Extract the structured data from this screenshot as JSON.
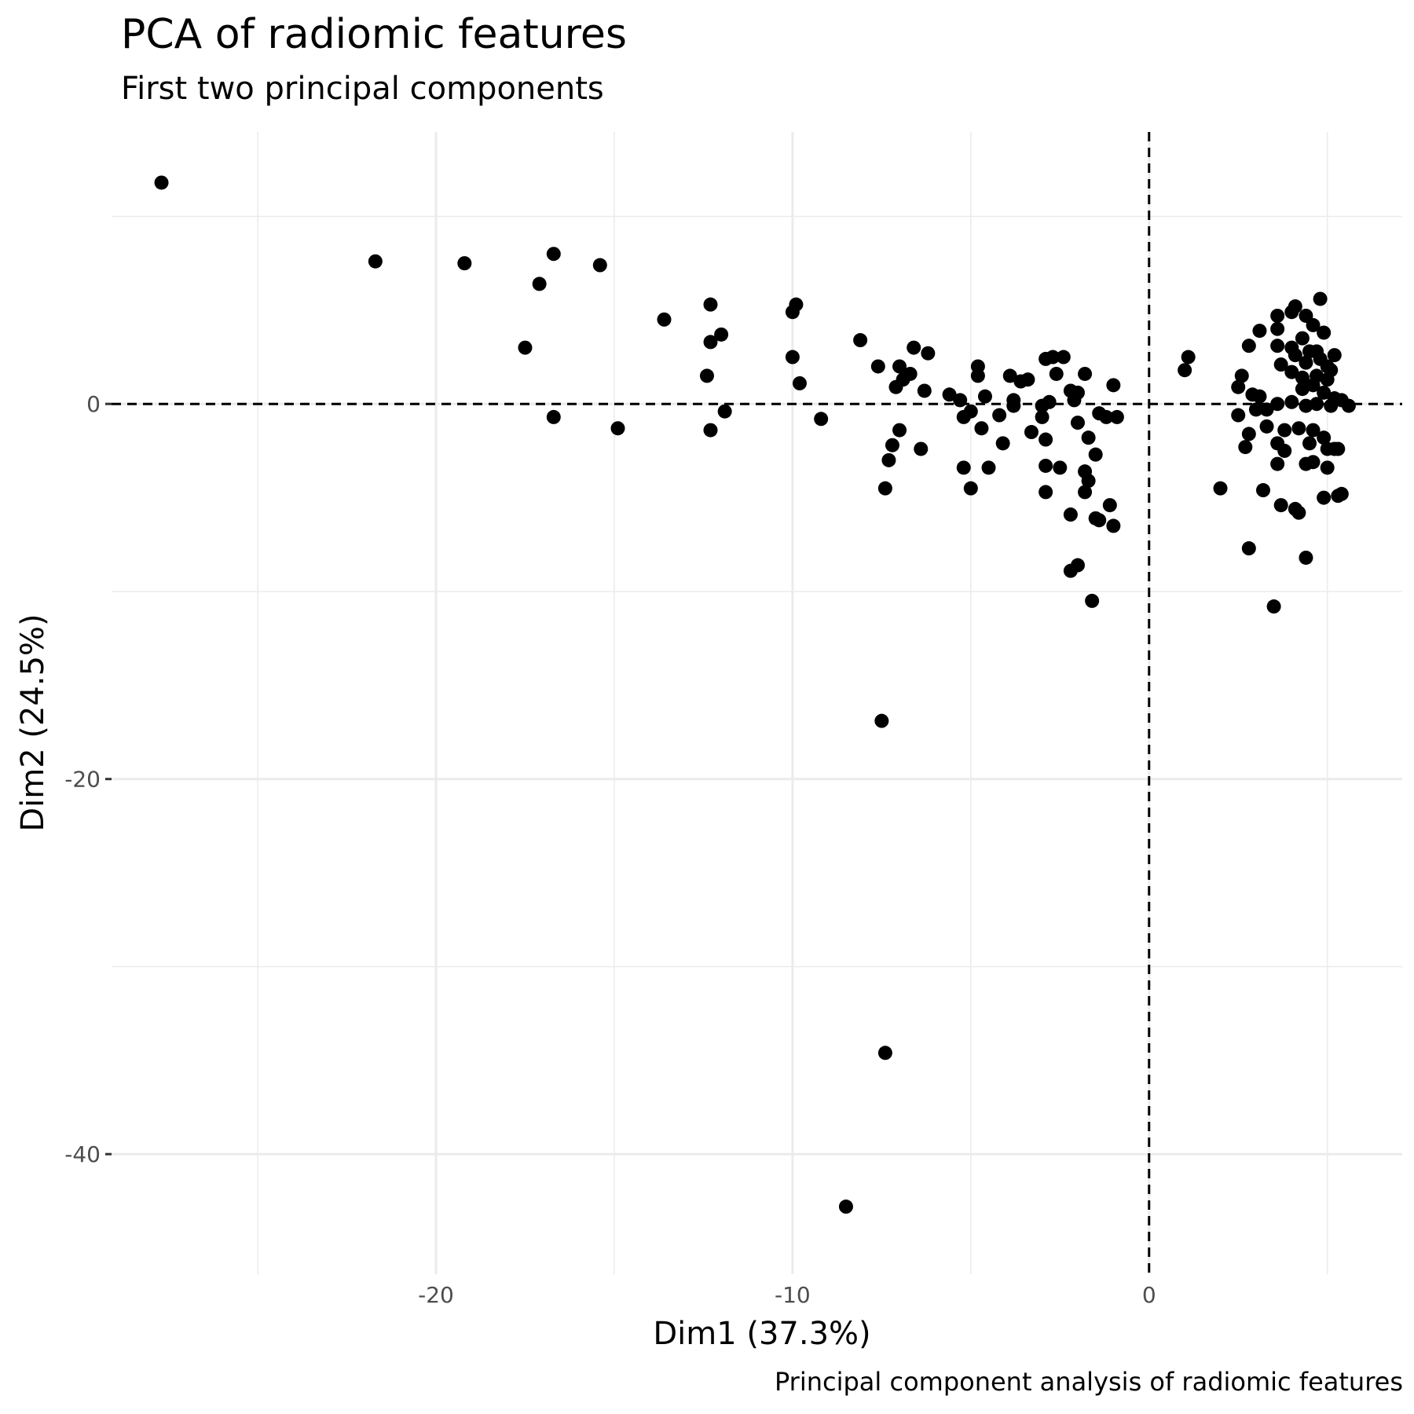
{
  "title": "PCA of radiomic features",
  "subtitle": "First two principal components",
  "caption": "Principal component analysis of radiomic features",
  "chart_data": {
    "type": "scatter",
    "title": "PCA of radiomic features",
    "subtitle": "First two principal components",
    "xlabel": "Dim1 (37.3%)",
    "ylabel": "Dim2 (24.5%)",
    "xlim": [
      -29.1,
      7.1
    ],
    "ylim": [
      -46.4,
      14.5
    ],
    "xticks": [
      -20,
      -10,
      0
    ],
    "yticks": [
      0,
      -20,
      -40
    ],
    "grid": true,
    "reference_lines": {
      "x": 0,
      "y": 0,
      "style": "dashed"
    },
    "point_color": "#000000",
    "points": [
      {
        "x": -27.7,
        "y": 11.8
      },
      {
        "x": -21.7,
        "y": 7.6
      },
      {
        "x": -19.2,
        "y": 7.5
      },
      {
        "x": -16.7,
        "y": 8.0
      },
      {
        "x": -15.4,
        "y": 7.4
      },
      {
        "x": -17.1,
        "y": 6.4
      },
      {
        "x": -17.5,
        "y": 3.0
      },
      {
        "x": -16.7,
        "y": -0.7
      },
      {
        "x": -14.9,
        "y": -1.3
      },
      {
        "x": -13.6,
        "y": 4.5
      },
      {
        "x": -12.3,
        "y": 5.3
      },
      {
        "x": -12.3,
        "y": 3.3
      },
      {
        "x": -12.0,
        "y": 3.7
      },
      {
        "x": -12.4,
        "y": 1.5
      },
      {
        "x": -12.3,
        "y": -1.4
      },
      {
        "x": -11.9,
        "y": -0.4
      },
      {
        "x": -9.9,
        "y": 5.3
      },
      {
        "x": -10.0,
        "y": 4.9
      },
      {
        "x": -10.0,
        "y": 2.5
      },
      {
        "x": -9.8,
        "y": 1.1
      },
      {
        "x": -9.2,
        "y": -0.8
      },
      {
        "x": -8.1,
        "y": 3.4
      },
      {
        "x": -7.6,
        "y": 2.0
      },
      {
        "x": -7.0,
        "y": 2.0
      },
      {
        "x": -6.6,
        "y": 3.0
      },
      {
        "x": -6.2,
        "y": 2.7
      },
      {
        "x": -6.7,
        "y": 1.6
      },
      {
        "x": -6.9,
        "y": 1.3
      },
      {
        "x": -7.1,
        "y": 0.9
      },
      {
        "x": -6.3,
        "y": 0.7
      },
      {
        "x": -5.6,
        "y": 0.5
      },
      {
        "x": -5.3,
        "y": 0.2
      },
      {
        "x": -4.8,
        "y": 2.0
      },
      {
        "x": -4.8,
        "y": 1.5
      },
      {
        "x": -7.0,
        "y": -1.4
      },
      {
        "x": -7.2,
        "y": -2.2
      },
      {
        "x": -7.3,
        "y": -3.0
      },
      {
        "x": -6.4,
        "y": -2.4
      },
      {
        "x": -7.4,
        "y": -4.5
      },
      {
        "x": -5.2,
        "y": -0.7
      },
      {
        "x": -5.0,
        "y": -0.4
      },
      {
        "x": -4.6,
        "y": 0.4
      },
      {
        "x": -4.7,
        "y": -1.3
      },
      {
        "x": -5.2,
        "y": -3.4
      },
      {
        "x": -4.5,
        "y": -3.4
      },
      {
        "x": -5.0,
        "y": -4.5
      },
      {
        "x": -3.9,
        "y": 1.5
      },
      {
        "x": -3.6,
        "y": 1.2
      },
      {
        "x": -3.4,
        "y": 1.3
      },
      {
        "x": -3.8,
        "y": 0.2
      },
      {
        "x": -3.8,
        "y": -0.1
      },
      {
        "x": -4.2,
        "y": -0.6
      },
      {
        "x": -4.1,
        "y": -2.1
      },
      {
        "x": -3.3,
        "y": -1.5
      },
      {
        "x": -2.9,
        "y": 2.4
      },
      {
        "x": -2.7,
        "y": 2.5
      },
      {
        "x": -2.4,
        "y": 2.5
      },
      {
        "x": -2.6,
        "y": 1.6
      },
      {
        "x": -3.0,
        "y": -0.1
      },
      {
        "x": -3.0,
        "y": -0.7
      },
      {
        "x": -2.9,
        "y": -1.9
      },
      {
        "x": -2.9,
        "y": -3.3
      },
      {
        "x": -2.5,
        "y": -3.4
      },
      {
        "x": -2.9,
        "y": -4.7
      },
      {
        "x": -2.8,
        "y": 0.1
      },
      {
        "x": -2.2,
        "y": 0.7
      },
      {
        "x": -1.8,
        "y": 1.6
      },
      {
        "x": -2.0,
        "y": 0.6
      },
      {
        "x": -2.1,
        "y": 0.2
      },
      {
        "x": -2.0,
        "y": -1.0
      },
      {
        "x": -1.7,
        "y": -1.8
      },
      {
        "x": -1.4,
        "y": -0.5
      },
      {
        "x": -1.2,
        "y": -0.7
      },
      {
        "x": -1.0,
        "y": 1.0
      },
      {
        "x": -0.9,
        "y": -0.7
      },
      {
        "x": -1.5,
        "y": -2.7
      },
      {
        "x": -1.8,
        "y": -3.6
      },
      {
        "x": -1.7,
        "y": -4.1
      },
      {
        "x": -1.8,
        "y": -4.7
      },
      {
        "x": -2.2,
        "y": -5.9
      },
      {
        "x": -1.5,
        "y": -6.1
      },
      {
        "x": -1.4,
        "y": -6.2
      },
      {
        "x": -1.1,
        "y": -5.4
      },
      {
        "x": -1.0,
        "y": -6.5
      },
      {
        "x": -2.2,
        "y": -8.9
      },
      {
        "x": -2.0,
        "y": -8.6
      },
      {
        "x": -1.6,
        "y": -10.5
      },
      {
        "x": -7.5,
        "y": -16.9
      },
      {
        "x": -7.4,
        "y": -34.6
      },
      {
        "x": -8.5,
        "y": -42.8
      },
      {
        "x": 1.0,
        "y": 1.8
      },
      {
        "x": 1.1,
        "y": 2.5
      },
      {
        "x": 2.6,
        "y": 1.5
      },
      {
        "x": 2.5,
        "y": 0.9
      },
      {
        "x": 2.9,
        "y": 0.5
      },
      {
        "x": 3.1,
        "y": 0.4
      },
      {
        "x": 2.8,
        "y": 3.1
      },
      {
        "x": 3.1,
        "y": 3.9
      },
      {
        "x": 3.6,
        "y": 4.7
      },
      {
        "x": 3.6,
        "y": 4.0
      },
      {
        "x": 3.6,
        "y": 3.1
      },
      {
        "x": 4.1,
        "y": 5.2
      },
      {
        "x": 4.0,
        "y": 4.9
      },
      {
        "x": 4.4,
        "y": 4.7
      },
      {
        "x": 4.6,
        "y": 4.2
      },
      {
        "x": 4.9,
        "y": 3.8
      },
      {
        "x": 4.8,
        "y": 5.6
      },
      {
        "x": 4.3,
        "y": 3.5
      },
      {
        "x": 4.0,
        "y": 3.0
      },
      {
        "x": 4.5,
        "y": 2.8
      },
      {
        "x": 4.8,
        "y": 2.4
      },
      {
        "x": 5.0,
        "y": 2.0
      },
      {
        "x": 4.1,
        "y": 2.6
      },
      {
        "x": 4.4,
        "y": 2.2
      },
      {
        "x": 4.7,
        "y": 2.8
      },
      {
        "x": 5.2,
        "y": 2.6
      },
      {
        "x": 3.7,
        "y": 2.1
      },
      {
        "x": 4.0,
        "y": 1.7
      },
      {
        "x": 4.3,
        "y": 1.4
      },
      {
        "x": 4.7,
        "y": 1.5
      },
      {
        "x": 5.1,
        "y": 1.8
      },
      {
        "x": 5.0,
        "y": 1.3
      },
      {
        "x": 4.6,
        "y": 1.0
      },
      {
        "x": 4.3,
        "y": 0.8
      },
      {
        "x": 4.9,
        "y": 0.6
      },
      {
        "x": 5.2,
        "y": 0.3
      },
      {
        "x": 5.1,
        "y": -0.1
      },
      {
        "x": 5.4,
        "y": 0.2
      },
      {
        "x": 5.6,
        "y": -0.1
      },
      {
        "x": 4.7,
        "y": 0.0
      },
      {
        "x": 4.4,
        "y": -0.1
      },
      {
        "x": 4.0,
        "y": 0.1
      },
      {
        "x": 3.6,
        "y": 0.0
      },
      {
        "x": 3.3,
        "y": -0.3
      },
      {
        "x": 3.0,
        "y": -0.3
      },
      {
        "x": 2.5,
        "y": -0.6
      },
      {
        "x": 3.3,
        "y": -1.2
      },
      {
        "x": 2.8,
        "y": -1.6
      },
      {
        "x": 2.7,
        "y": -2.3
      },
      {
        "x": 3.8,
        "y": -1.4
      },
      {
        "x": 4.2,
        "y": -1.3
      },
      {
        "x": 4.6,
        "y": -1.4
      },
      {
        "x": 4.9,
        "y": -1.8
      },
      {
        "x": 3.6,
        "y": -2.1
      },
      {
        "x": 3.8,
        "y": -2.5
      },
      {
        "x": 4.5,
        "y": -2.1
      },
      {
        "x": 5.0,
        "y": -2.4
      },
      {
        "x": 5.2,
        "y": -2.4
      },
      {
        "x": 5.3,
        "y": -2.4
      },
      {
        "x": 3.6,
        "y": -3.2
      },
      {
        "x": 4.4,
        "y": -3.2
      },
      {
        "x": 4.6,
        "y": -3.1
      },
      {
        "x": 5.0,
        "y": -3.4
      },
      {
        "x": 2.0,
        "y": -4.5
      },
      {
        "x": 3.2,
        "y": -4.6
      },
      {
        "x": 3.7,
        "y": -5.4
      },
      {
        "x": 4.1,
        "y": -5.6
      },
      {
        "x": 4.2,
        "y": -5.8
      },
      {
        "x": 4.9,
        "y": -5.0
      },
      {
        "x": 5.3,
        "y": -4.9
      },
      {
        "x": 5.4,
        "y": -4.8
      },
      {
        "x": 2.8,
        "y": -7.7
      },
      {
        "x": 4.4,
        "y": -8.2
      },
      {
        "x": 3.5,
        "y": -10.8
      }
    ]
  }
}
